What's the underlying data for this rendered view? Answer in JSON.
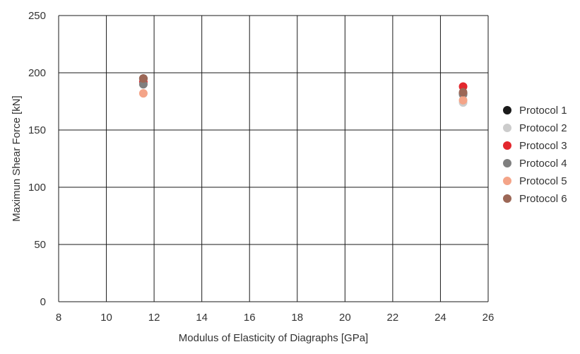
{
  "chart_data": {
    "type": "scatter",
    "title": "",
    "xlabel": "Modulus of Elasticity of Diagraphs [GPa]",
    "ylabel": "Maximun Shear Force [kN]",
    "xlim": [
      8,
      26
    ],
    "ylim": [
      0,
      250
    ],
    "xticks": [
      8,
      10,
      12,
      14,
      16,
      18,
      20,
      22,
      24,
      26
    ],
    "yticks": [
      0,
      50,
      100,
      150,
      200,
      250
    ],
    "grid": true,
    "legend_position": "right",
    "series": [
      {
        "name": "Protocol 1",
        "color": "#1a1a1a",
        "points": [
          [
            11.55,
            195
          ],
          [
            24.95,
            182
          ]
        ]
      },
      {
        "name": "Protocol 2",
        "color": "#cccccc",
        "points": [
          [
            11.55,
            190
          ],
          [
            24.95,
            174
          ]
        ]
      },
      {
        "name": "Protocol 3",
        "color": "#e3272d",
        "points": [
          [
            11.55,
            192
          ],
          [
            24.95,
            188
          ]
        ]
      },
      {
        "name": "Protocol 4",
        "color": "#7f7f7f",
        "points": [
          [
            11.55,
            190
          ],
          [
            24.95,
            181
          ]
        ]
      },
      {
        "name": "Protocol 5",
        "color": "#f4a488",
        "points": [
          [
            11.55,
            182
          ],
          [
            24.95,
            176
          ]
        ]
      },
      {
        "name": "Protocol 6",
        "color": "#9c6756",
        "points": [
          [
            11.55,
            195
          ],
          [
            24.95,
            183
          ]
        ]
      }
    ]
  }
}
